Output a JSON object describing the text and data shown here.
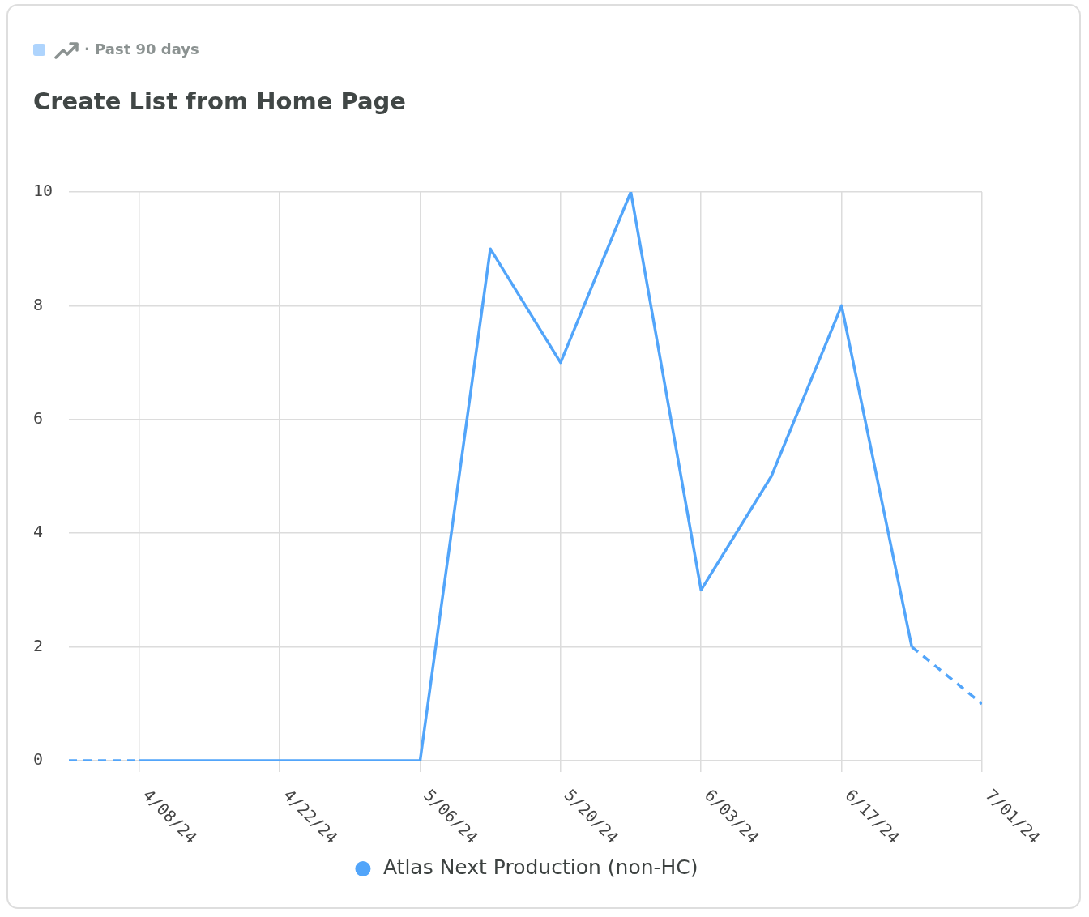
{
  "chart_data": {
    "type": "line",
    "title": "Create List from Home Page",
    "subtitle": "· Past 90 days",
    "series": [
      {
        "color": "#52a5fa",
        "line_style": "dashed",
        "x": [
          "2024-04-01",
          "2024-04-08"
        ],
        "values": [
          0,
          0
        ]
      },
      {
        "name": "Atlas Next Production (non-HC)",
        "color": "#52a5fa",
        "x": [
          "2024-04-08",
          "2024-04-15",
          "2024-04-22",
          "2024-04-29",
          "2024-05-06",
          "2024-05-13",
          "2024-05-20",
          "2024-05-27",
          "2024-06-03",
          "2024-06-10",
          "2024-06-17",
          "2024-06-24"
        ],
        "values": [
          0,
          0,
          0,
          0,
          0,
          9,
          7,
          10,
          3,
          5,
          8,
          2
        ]
      },
      {
        "color": "#52a5fa",
        "line_style": "dashed",
        "x": [
          "2024-06-24",
          "2024-07-01"
        ],
        "values": [
          2,
          1
        ]
      }
    ],
    "xlim": [
      "2024-04-01",
      "2024-07-01"
    ],
    "xticks": [
      {
        "value": "2024-04-08",
        "label": "4/08/24"
      },
      {
        "value": "2024-04-22",
        "label": "4/22/24"
      },
      {
        "value": "2024-05-06",
        "label": "5/06/24"
      },
      {
        "value": "2024-05-20",
        "label": "5/20/24"
      },
      {
        "value": "2024-06-03",
        "label": "6/03/24"
      },
      {
        "value": "2024-06-17",
        "label": "6/17/24"
      },
      {
        "value": "2024-07-01",
        "label": "7/01/24"
      }
    ],
    "ylim": [
      0,
      10
    ],
    "yticks": [
      0,
      2,
      4,
      6,
      8,
      10
    ],
    "grid": true,
    "legend": "bottom",
    "marker": "none",
    "line_style": "solid"
  }
}
